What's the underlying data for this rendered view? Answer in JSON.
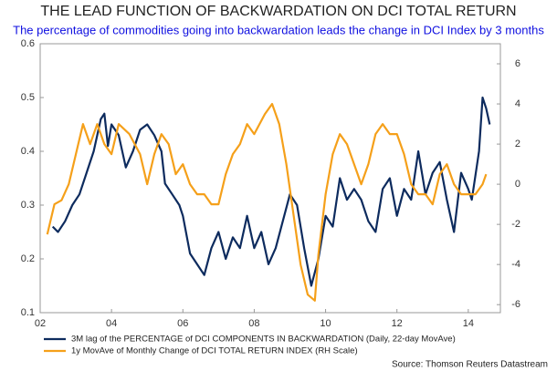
{
  "chart_data": {
    "type": "line",
    "title": "THE LEAD FUNCTION OF BACKWARDATION ON DCI TOTAL RETURN",
    "subtitle": "The percentage of commodities going into backwardation leads the change in DCI Index by 3 months",
    "source": "Source: Thomson Reuters Datastream",
    "xlim": [
      2002,
      2014.9
    ],
    "xticks": [
      {
        "value": 2002,
        "label": "02"
      },
      {
        "value": 2004,
        "label": "04"
      },
      {
        "value": 2006,
        "label": "06"
      },
      {
        "value": 2008,
        "label": "08"
      },
      {
        "value": 2010,
        "label": "10"
      },
      {
        "value": 2012,
        "label": "12"
      },
      {
        "value": 2014,
        "label": "14"
      }
    ],
    "ylim": [
      0.1,
      0.6
    ],
    "yticks": [
      0.1,
      0.2,
      0.3,
      0.4,
      0.5,
      0.6
    ],
    "y2lim": [
      -6.4,
      7.0
    ],
    "y2ticks": [
      -6,
      -4,
      -2,
      0,
      2,
      4,
      6
    ],
    "grid": false,
    "series": [
      {
        "name": "3M lag of the PERCENTAGE of DCI COMPONENTS IN BACKWARDATION (Daily, 22-day MovAve)",
        "color": "#0d2b5e",
        "x": [
          2002.35,
          2002.5,
          2002.7,
          2002.9,
          2003.1,
          2003.3,
          2003.5,
          2003.7,
          2003.8,
          2003.9,
          2004.0,
          2004.2,
          2004.4,
          2004.6,
          2004.8,
          2005.0,
          2005.2,
          2005.4,
          2005.5,
          2005.7,
          2005.9,
          2006.0,
          2006.2,
          2006.4,
          2006.6,
          2006.8,
          2007.0,
          2007.2,
          2007.4,
          2007.6,
          2007.8,
          2008.0,
          2008.2,
          2008.4,
          2008.6,
          2008.8,
          2009.0,
          2009.2,
          2009.4,
          2009.6,
          2009.8,
          2010.0,
          2010.2,
          2010.4,
          2010.6,
          2010.8,
          2011.0,
          2011.2,
          2011.4,
          2011.6,
          2011.8,
          2012.0,
          2012.2,
          2012.4,
          2012.6,
          2012.8,
          2013.0,
          2013.2,
          2013.4,
          2013.6,
          2013.8,
          2014.0,
          2014.1,
          2014.3,
          2014.4,
          2014.5,
          2014.6
        ],
        "values": [
          0.26,
          0.25,
          0.27,
          0.3,
          0.32,
          0.36,
          0.4,
          0.46,
          0.47,
          0.41,
          0.45,
          0.43,
          0.37,
          0.4,
          0.44,
          0.45,
          0.43,
          0.4,
          0.34,
          0.32,
          0.3,
          0.28,
          0.21,
          0.19,
          0.17,
          0.22,
          0.25,
          0.2,
          0.24,
          0.22,
          0.28,
          0.22,
          0.25,
          0.19,
          0.22,
          0.27,
          0.32,
          0.3,
          0.22,
          0.15,
          0.2,
          0.28,
          0.26,
          0.35,
          0.31,
          0.33,
          0.31,
          0.27,
          0.25,
          0.33,
          0.35,
          0.28,
          0.33,
          0.31,
          0.4,
          0.32,
          0.36,
          0.38,
          0.31,
          0.25,
          0.36,
          0.33,
          0.31,
          0.4,
          0.5,
          0.48,
          0.45
        ]
      },
      {
        "name": "1y MovAve of Monthly Change of DCI TOTAL RETURN INDEX (RH Scale)",
        "color": "#f5a01a",
        "axis": "y2",
        "x": [
          2002.2,
          2002.4,
          2002.6,
          2002.8,
          2003.0,
          2003.2,
          2003.4,
          2003.6,
          2003.8,
          2004.0,
          2004.2,
          2004.5,
          2004.8,
          2005.0,
          2005.2,
          2005.4,
          2005.6,
          2005.8,
          2006.0,
          2006.2,
          2006.4,
          2006.6,
          2006.8,
          2007.0,
          2007.2,
          2007.4,
          2007.6,
          2007.8,
          2008.0,
          2008.3,
          2008.5,
          2008.7,
          2008.9,
          2009.1,
          2009.3,
          2009.5,
          2009.7,
          2009.8,
          2010.0,
          2010.2,
          2010.4,
          2010.6,
          2010.8,
          2011.0,
          2011.2,
          2011.4,
          2011.6,
          2011.8,
          2012.0,
          2012.2,
          2012.4,
          2012.6,
          2012.8,
          2013.0,
          2013.2,
          2013.4,
          2013.6,
          2013.8,
          2014.0,
          2014.2,
          2014.4,
          2014.5
        ],
        "values": [
          -2.5,
          -1.0,
          -0.8,
          0.0,
          1.5,
          3.0,
          2.0,
          3.0,
          2.0,
          1.5,
          3.0,
          2.5,
          1.5,
          0.0,
          1.5,
          2.5,
          2.0,
          0.5,
          1.0,
          0.0,
          -0.5,
          -0.5,
          -1.0,
          -1.0,
          0.5,
          1.5,
          2.0,
          3.0,
          2.5,
          3.5,
          4.0,
          3.0,
          1.0,
          -1.5,
          -4.0,
          -5.5,
          -5.8,
          -3.5,
          -0.5,
          1.5,
          2.5,
          2.0,
          1.0,
          0.0,
          1.0,
          2.5,
          3.0,
          2.5,
          2.5,
          1.5,
          0.0,
          -0.5,
          -0.5,
          -1.0,
          0.5,
          1.0,
          0.0,
          -0.5,
          -0.5,
          -0.5,
          0.0,
          0.5
        ]
      }
    ]
  }
}
